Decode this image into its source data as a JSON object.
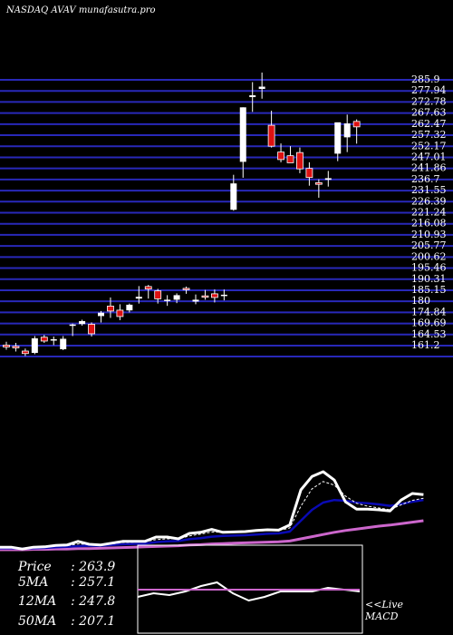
{
  "header": {
    "title": "NASDAQ AVAV munafasutra.pro"
  },
  "colors": {
    "background": "#000000",
    "grid": "#2828b8",
    "up_candle": "#ffffff",
    "down_candle": "#dd1111",
    "price_line": "#ffffff",
    "ma5": "#ffffff",
    "ma12": "#0a0ab4",
    "ma50": "#cc66cc",
    "macd_line": "#ffffff",
    "macd_signal": "#cc66cc"
  },
  "info_panel": {
    "price_label": "Price",
    "price_value": ": 263.9",
    "ma5_label": "5MA",
    "ma5_value": ": 257.1",
    "ma12_label": "12MA",
    "ma12_value": ": 247.8",
    "ma50_label": "50MA",
    "ma50_value": ": 207.1"
  },
  "macd_panel": {
    "label_live": "<<Live",
    "label_macd": "MACD"
  },
  "chart_data": [
    {
      "type": "candlestick",
      "title": "NASDAQ AVAV munafasutra.pro",
      "ylim": [
        161,
        286
      ],
      "y_ticks": [
        "285.9",
        "277.94",
        "272.78",
        "267.63",
        "262.47",
        "257.32",
        "252.17",
        "247.01",
        "241.86",
        "236.7",
        "231.55",
        "226.39",
        "221.24",
        "216.08",
        "210.93",
        "205.77",
        "200.62",
        "195.46",
        "190.31",
        "185.15",
        "180",
        "174.84",
        "169.69",
        "164.53",
        "161.2"
      ],
      "candles": [
        {
          "o": 166.0,
          "h": 167.5,
          "l": 164.0,
          "c": 165.2
        },
        {
          "o": 165.5,
          "h": 167.0,
          "l": 163.2,
          "c": 164.8
        },
        {
          "o": 163.4,
          "h": 164.5,
          "l": 161.2,
          "c": 162.3
        },
        {
          "o": 162.6,
          "h": 170.0,
          "l": 162.0,
          "c": 169.0
        },
        {
          "o": 169.5,
          "h": 170.5,
          "l": 167.0,
          "c": 167.8
        },
        {
          "o": 168.0,
          "h": 169.8,
          "l": 166.0,
          "c": 168.6
        },
        {
          "o": 164.2,
          "h": 170.0,
          "l": 163.8,
          "c": 168.8
        },
        {
          "o": 174.8,
          "h": 175.5,
          "l": 170.0,
          "c": 175.1
        },
        {
          "o": 175.3,
          "h": 177.2,
          "l": 174.6,
          "c": 176.6
        },
        {
          "o": 175.2,
          "h": 176.0,
          "l": 169.8,
          "c": 171.0
        },
        {
          "o": 178.8,
          "h": 181.0,
          "l": 176.0,
          "c": 180.3
        },
        {
          "o": 183.2,
          "h": 187.0,
          "l": 178.0,
          "c": 181.0
        },
        {
          "o": 181.4,
          "h": 184.0,
          "l": 177.0,
          "c": 178.6
        },
        {
          "o": 181.3,
          "h": 184.3,
          "l": 180.4,
          "c": 183.8
        },
        {
          "o": 186.5,
          "h": 192.0,
          "l": 184.3,
          "c": 187.3
        },
        {
          "o": 191.8,
          "h": 192.5,
          "l": 186.5,
          "c": 190.7
        },
        {
          "o": 189.9,
          "h": 190.8,
          "l": 184.3,
          "c": 186.4
        },
        {
          "o": 185.6,
          "h": 188.0,
          "l": 183.3,
          "c": 186.0
        },
        {
          "o": 186.0,
          "h": 188.8,
          "l": 184.5,
          "c": 188.0
        },
        {
          "o": 191.0,
          "h": 191.8,
          "l": 188.6,
          "c": 190.8
        },
        {
          "o": 185.2,
          "h": 188.3,
          "l": 184.0,
          "c": 186.0
        },
        {
          "o": 187.7,
          "h": 190.3,
          "l": 186.0,
          "c": 187.1
        },
        {
          "o": 188.6,
          "h": 190.5,
          "l": 184.8,
          "c": 187.0
        },
        {
          "o": 187.8,
          "h": 190.5,
          "l": 185.7,
          "c": 188.2
        },
        {
          "o": 225.6,
          "h": 241.0,
          "l": 225.2,
          "c": 237.2
        },
        {
          "o": 246.7,
          "h": 270.7,
          "l": 239.7,
          "c": 270.7
        },
        {
          "o": 275.2,
          "h": 281.8,
          "l": 268.7,
          "c": 276.0
        },
        {
          "o": 278.8,
          "h": 286.0,
          "l": 274.5,
          "c": 279.8
        },
        {
          "o": 262.8,
          "h": 269.2,
          "l": 253.0,
          "c": 253.6
        },
        {
          "o": 251.0,
          "h": 254.8,
          "l": 246.5,
          "c": 247.7
        },
        {
          "o": 249.4,
          "h": 253.6,
          "l": 246.9,
          "c": 246.3
        },
        {
          "o": 250.8,
          "h": 253.0,
          "l": 241.7,
          "c": 243.6
        },
        {
          "o": 243.8,
          "h": 246.5,
          "l": 236.2,
          "c": 239.8
        },
        {
          "o": 237.5,
          "h": 239.0,
          "l": 230.9,
          "c": 236.8
        },
        {
          "o": 238.8,
          "h": 242.7,
          "l": 235.8,
          "c": 239.5
        },
        {
          "o": 250.3,
          "h": 263.0,
          "l": 247.0,
          "c": 264.1
        },
        {
          "o": 257.5,
          "h": 267.5,
          "l": 251.0,
          "c": 263.6
        },
        {
          "o": 264.5,
          "h": 265.4,
          "l": 254.7,
          "c": 262.1
        }
      ]
    },
    {
      "type": "line",
      "series": [
        {
          "key": "price",
          "values": [
            0.7,
            0.7,
            0.2,
            0.7,
            0.8,
            1.2,
            1.3,
            2.3,
            1.5,
            1.3,
            1.8,
            2.3,
            2.3,
            2.3,
            3.5,
            3.5,
            3.0,
            4.5,
            4.8,
            5.6,
            4.8,
            4.9,
            5.0,
            5.3,
            5.5,
            5.4,
            6.8,
            16.5,
            20.2,
            21.5,
            19.2,
            13.2,
            11.2,
            11.2,
            11.0,
            10.7,
            13.7,
            15.5,
            15.2
          ]
        },
        {
          "key": "ma5",
          "values": [
            0.6,
            0.6,
            0.4,
            0.6,
            0.7,
            1.0,
            1.1,
            1.6,
            1.5,
            1.3,
            1.6,
            2.0,
            2.1,
            2.2,
            2.8,
            3.0,
            3.0,
            3.8,
            4.3,
            4.9,
            4.8,
            4.8,
            4.9,
            5.1,
            5.3,
            5.3,
            6.0,
            12.0,
            16.8,
            18.8,
            17.8,
            14.8,
            12.8,
            12.0,
            11.5,
            11.0,
            12.4,
            13.6,
            14.2
          ]
        },
        {
          "key": "ma12",
          "values": [
            0.4,
            0.4,
            0.3,
            0.4,
            0.5,
            0.7,
            0.8,
            1.0,
            1.1,
            1.1,
            1.3,
            1.5,
            1.6,
            1.7,
            2.1,
            2.3,
            2.4,
            2.9,
            3.2,
            3.6,
            3.8,
            3.9,
            4.0,
            4.2,
            4.4,
            4.5,
            5.0,
            8.0,
            11.0,
            13.0,
            13.7,
            13.5,
            13.0,
            12.8,
            12.5,
            12.1,
            12.6,
            13.2,
            13.7
          ]
        },
        {
          "key": "ma50",
          "values": [
            0.0,
            0.0,
            0.0,
            0.1,
            0.1,
            0.2,
            0.2,
            0.3,
            0.3,
            0.4,
            0.5,
            0.6,
            0.7,
            0.8,
            0.9,
            1.0,
            1.1,
            1.3,
            1.4,
            1.6,
            1.7,
            1.8,
            1.9,
            2.0,
            2.1,
            2.2,
            2.4,
            3.0,
            3.6,
            4.2,
            4.8,
            5.3,
            5.7,
            6.1,
            6.5,
            6.8,
            7.2,
            7.6,
            8.0
          ]
        }
      ]
    },
    {
      "type": "line",
      "series": [
        {
          "key": "macd",
          "values": [
            10.5,
            11.5,
            11.0,
            12.0,
            13.5,
            14.5,
            11.5,
            9.5,
            10.5,
            12.0,
            12.0,
            12.0,
            13.0,
            12.5,
            12.0
          ]
        },
        {
          "key": "signal",
          "values": [
            12.5,
            12.5,
            12.5,
            12.5,
            12.5,
            12.5,
            12.5,
            12.5,
            12.5,
            12.5,
            12.5,
            12.5,
            12.5,
            12.5,
            12.5
          ]
        }
      ]
    }
  ]
}
